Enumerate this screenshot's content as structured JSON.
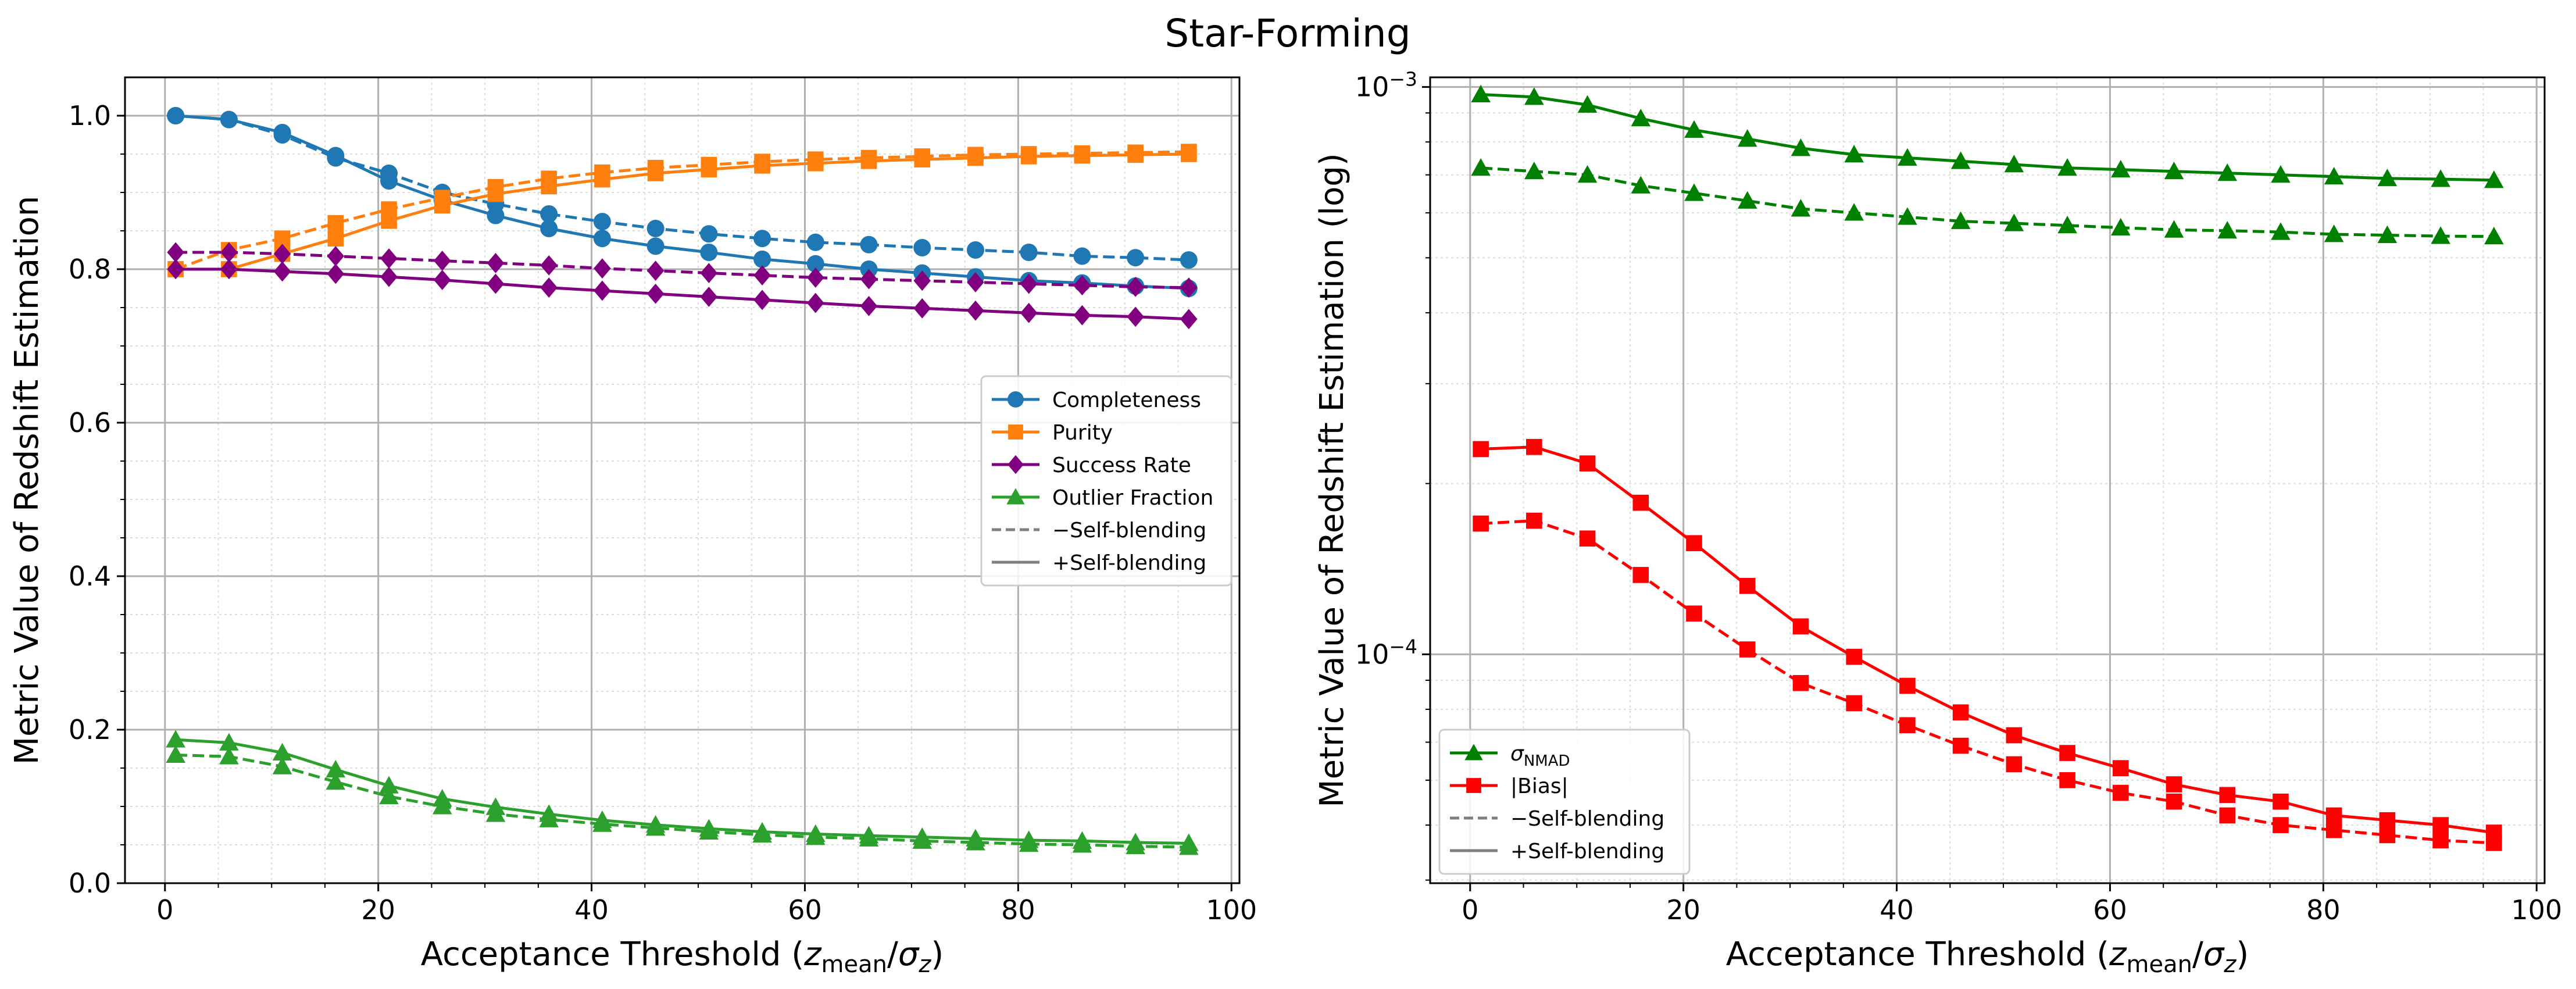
{
  "title": "Star-Forming",
  "colors": {
    "completeness": "#1f77b4",
    "purity": "#ff7f0e",
    "success": "#800080",
    "outlier": "#2ca02c",
    "sigma": "#008000",
    "bias": "#ff0000",
    "legend_style": "#808080",
    "grid_major": "#b0b0b0",
    "grid_minor": "#dddddd"
  },
  "chart_data": [
    {
      "type": "line",
      "xlabel": "Acceptance Threshold (z_mean/σ_z)",
      "xlabel_parts": {
        "pre": "Acceptance Threshold (",
        "var1": "z",
        "sub1": "mean",
        "mid": "/",
        "var2": "σ",
        "sub2": "z",
        "post": ")"
      },
      "ylabel": "Metric Value of Redshift Estimation",
      "xlim": [
        -3.75,
        100.75
      ],
      "ylim": [
        0,
        1.05
      ],
      "xticks": [
        0,
        20,
        40,
        60,
        80,
        100
      ],
      "xtick_labels": [
        "0",
        "20",
        "40",
        "60",
        "80",
        "100"
      ],
      "yticks": [
        0.0,
        0.2,
        0.4,
        0.6,
        0.8,
        1.0
      ],
      "ytick_labels": [
        "0.0",
        "0.2",
        "0.4",
        "0.6",
        "0.8",
        "1.0"
      ],
      "grid": true,
      "minor_grid": true,
      "legend_position": "center-right",
      "x": [
        1,
        6,
        11,
        16,
        21,
        26,
        31,
        36,
        41,
        46,
        51,
        56,
        61,
        66,
        71,
        76,
        81,
        86,
        91,
        96
      ],
      "series": [
        {
          "name": "Completeness",
          "marker": "circle",
          "color_key": "completeness",
          "style": "dashed",
          "values": [
            1.0,
            0.995,
            0.975,
            0.945,
            0.925,
            0.9,
            0.885,
            0.872,
            0.862,
            0.853,
            0.846,
            0.84,
            0.835,
            0.832,
            0.828,
            0.825,
            0.822,
            0.817,
            0.815,
            0.812
          ]
        },
        {
          "name": "Completeness",
          "marker": "circle",
          "color_key": "completeness",
          "style": "solid",
          "values": [
            1.0,
            0.995,
            0.978,
            0.948,
            0.915,
            0.89,
            0.87,
            0.853,
            0.84,
            0.83,
            0.822,
            0.813,
            0.807,
            0.8,
            0.795,
            0.79,
            0.785,
            0.782,
            0.778,
            0.775
          ]
        },
        {
          "name": "Purity",
          "marker": "square",
          "color_key": "purity",
          "style": "dashed",
          "values": [
            0.8,
            0.825,
            0.84,
            0.86,
            0.878,
            0.893,
            0.907,
            0.918,
            0.926,
            0.932,
            0.936,
            0.94,
            0.943,
            0.945,
            0.947,
            0.949,
            0.95,
            0.951,
            0.952,
            0.953
          ]
        },
        {
          "name": "Purity",
          "marker": "square",
          "color_key": "purity",
          "style": "solid",
          "values": [
            0.8,
            0.8,
            0.82,
            0.84,
            0.863,
            0.883,
            0.898,
            0.908,
            0.917,
            0.925,
            0.93,
            0.935,
            0.938,
            0.941,
            0.943,
            0.945,
            0.947,
            0.948,
            0.949,
            0.95
          ]
        },
        {
          "name": "Success Rate",
          "marker": "diamond",
          "color_key": "success",
          "style": "dashed",
          "values": [
            0.822,
            0.822,
            0.82,
            0.817,
            0.814,
            0.811,
            0.808,
            0.805,
            0.801,
            0.798,
            0.795,
            0.792,
            0.789,
            0.787,
            0.785,
            0.783,
            0.781,
            0.779,
            0.777,
            0.776
          ]
        },
        {
          "name": "Success Rate",
          "marker": "diamond",
          "color_key": "success",
          "style": "solid",
          "values": [
            0.8,
            0.8,
            0.797,
            0.794,
            0.79,
            0.786,
            0.781,
            0.776,
            0.772,
            0.768,
            0.764,
            0.76,
            0.756,
            0.752,
            0.749,
            0.746,
            0.743,
            0.74,
            0.738,
            0.735
          ]
        },
        {
          "name": "Outlier Fraction",
          "marker": "triangle",
          "color_key": "outlier",
          "style": "dashed",
          "values": [
            0.167,
            0.165,
            0.152,
            0.132,
            0.113,
            0.1,
            0.09,
            0.083,
            0.077,
            0.072,
            0.067,
            0.063,
            0.06,
            0.058,
            0.055,
            0.053,
            0.051,
            0.05,
            0.048,
            0.047
          ]
        },
        {
          "name": "Outlier Fraction",
          "marker": "triangle",
          "color_key": "outlier",
          "style": "solid",
          "values": [
            0.187,
            0.183,
            0.17,
            0.148,
            0.127,
            0.11,
            0.099,
            0.09,
            0.082,
            0.076,
            0.071,
            0.067,
            0.064,
            0.062,
            0.06,
            0.058,
            0.056,
            0.055,
            0.053,
            0.052
          ]
        }
      ],
      "legend": [
        {
          "label": "Completeness",
          "marker": "circle",
          "color_key": "completeness",
          "style": "solid"
        },
        {
          "label": "Purity",
          "marker": "square",
          "color_key": "purity",
          "style": "solid"
        },
        {
          "label": "Success Rate",
          "marker": "diamond",
          "color_key": "success",
          "style": "solid"
        },
        {
          "label": "Outlier Fraction",
          "marker": "triangle",
          "color_key": "outlier",
          "style": "solid"
        },
        {
          "label": "−Self-blending",
          "marker": "none",
          "color_key": "legend_style",
          "style": "dashed"
        },
        {
          "label": "+Self-blending",
          "marker": "none",
          "color_key": "legend_style",
          "style": "solid"
        }
      ]
    },
    {
      "type": "line",
      "xlabel": "Acceptance Threshold (z_mean/σ_z)",
      "xlabel_parts": {
        "pre": "Acceptance Threshold (",
        "var1": "z",
        "sub1": "mean",
        "mid": "/",
        "var2": "σ",
        "sub2": "z",
        "post": ")"
      },
      "ylabel": "Metric Value of Redshift Estimation (log)",
      "log_y": true,
      "xlim": [
        -3.75,
        100.75
      ],
      "ylim": [
        3.95e-05,
        0.00104
      ],
      "xticks": [
        0,
        20,
        40,
        60,
        80,
        100
      ],
      "xtick_labels": [
        "0",
        "20",
        "40",
        "60",
        "80",
        "100"
      ],
      "yticks_major": [
        0.0001,
        0.001
      ],
      "ytick_labels": [
        {
          "base": "10",
          "exp": "−4"
        },
        {
          "base": "10",
          "exp": "−3"
        }
      ],
      "grid": true,
      "minor_grid": true,
      "legend_position": "lower-left",
      "x": [
        1,
        6,
        11,
        16,
        21,
        26,
        31,
        36,
        41,
        46,
        51,
        56,
        61,
        66,
        71,
        76,
        81,
        86,
        91,
        96
      ],
      "series": [
        {
          "name": "σNMAD",
          "marker": "triangle",
          "color_key": "sigma",
          "style": "solid",
          "values": [
            0.00097,
            0.00096,
            0.00093,
            0.00088,
            0.00084,
            0.00081,
            0.00078,
            0.00076,
            0.00075,
            0.00074,
            0.00073,
            0.00072,
            0.000715,
            0.00071,
            0.000705,
            0.0007,
            0.000695,
            0.00069,
            0.000688,
            0.000685
          ]
        },
        {
          "name": "σNMAD",
          "marker": "triangle",
          "color_key": "sigma",
          "style": "dashed",
          "values": [
            0.00072,
            0.00071,
            0.0007,
            0.00067,
            0.00065,
            0.00063,
            0.00061,
            0.0006,
            0.00059,
            0.00058,
            0.000575,
            0.00057,
            0.000565,
            0.00056,
            0.000558,
            0.000555,
            0.00055,
            0.000548,
            0.000546,
            0.000545
          ]
        },
        {
          "name": "|Bias|",
          "marker": "square",
          "color_key": "bias",
          "style": "solid",
          "values": [
            0.00023,
            0.000232,
            0.000217,
            0.000185,
            0.000157,
            0.000132,
            0.000112,
            9.9e-05,
            8.8e-05,
            7.9e-05,
            7.2e-05,
            6.7e-05,
            6.3e-05,
            5.9e-05,
            5.65e-05,
            5.5e-05,
            5.2e-05,
            5.1e-05,
            5e-05,
            4.85e-05
          ]
        },
        {
          "name": "|Bias|",
          "marker": "square",
          "color_key": "bias",
          "style": "dashed",
          "values": [
            0.00017,
            0.000172,
            0.00016,
            0.000138,
            0.000118,
            0.000102,
            8.9e-05,
            8.2e-05,
            7.5e-05,
            6.9e-05,
            6.4e-05,
            6e-05,
            5.7e-05,
            5.5e-05,
            5.2e-05,
            5e-05,
            4.9e-05,
            4.8e-05,
            4.7e-05,
            4.65e-05
          ]
        }
      ],
      "legend": [
        {
          "label": "σ",
          "label_sub": "NMAD",
          "marker": "triangle",
          "color_key": "sigma",
          "style": "solid"
        },
        {
          "label": "|Bias|",
          "marker": "square",
          "color_key": "bias",
          "style": "solid"
        },
        {
          "label": "−Self-blending",
          "marker": "none",
          "color_key": "legend_style",
          "style": "dashed"
        },
        {
          "label": "+Self-blending",
          "marker": "none",
          "color_key": "legend_style",
          "style": "solid"
        }
      ]
    }
  ]
}
